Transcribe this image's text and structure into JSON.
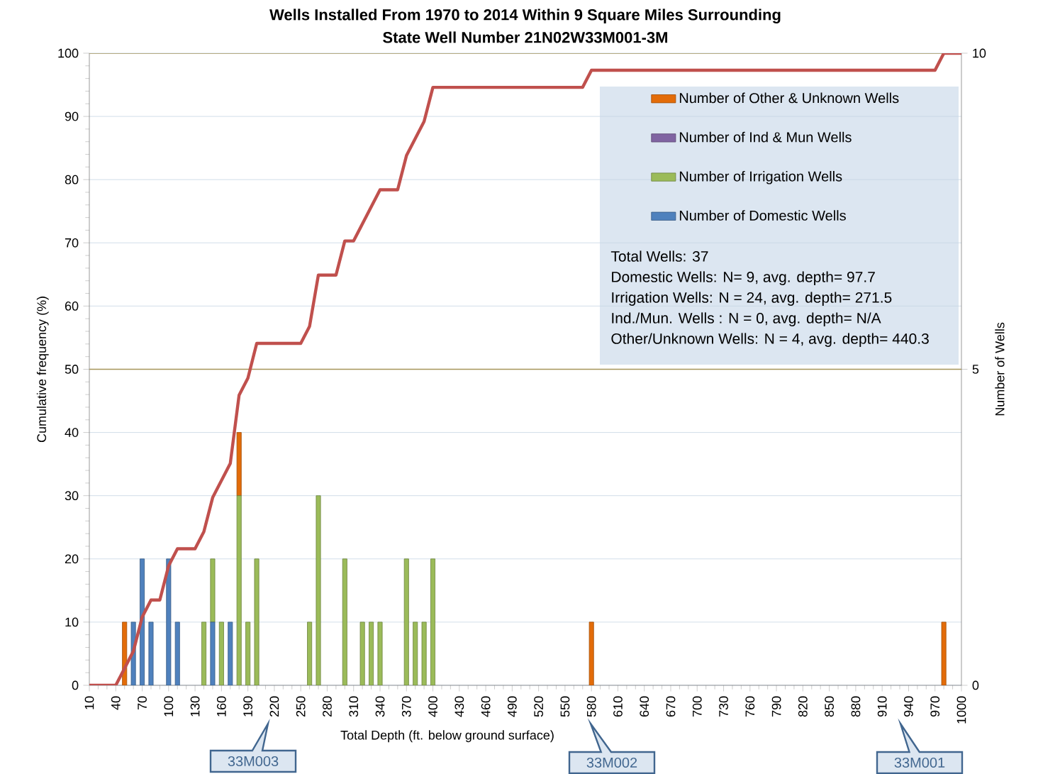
{
  "chart_data": {
    "type": "bar",
    "stacked": true,
    "title": "Wells Installed From 1970 to 2014 Within 9 Square Miles Surrounding",
    "subtitle": "State Well Number 21N02W33M001-3M",
    "xlabel": "Total Depth (ft. below ground surface)",
    "ylabel": "Cumulative frequency (%)",
    "y2label": "Number of Wells",
    "x": [
      50,
      60,
      70,
      80,
      100,
      110,
      140,
      150,
      160,
      170,
      180,
      190,
      200,
      260,
      270,
      300,
      320,
      330,
      340,
      370,
      380,
      390,
      400,
      580,
      980
    ],
    "series": [
      {
        "name": "Number of Domestic Wells",
        "color": "#4f81bd",
        "axis": "y2",
        "values": [
          0,
          1,
          2,
          1,
          2,
          1,
          0,
          1,
          0,
          1,
          0,
          0,
          0,
          0,
          0,
          0,
          0,
          0,
          0,
          0,
          0,
          0,
          0,
          0,
          0
        ]
      },
      {
        "name": "Number of Irrigation Wells",
        "color": "#9bbb59",
        "axis": "y2",
        "values": [
          0,
          0,
          0,
          0,
          0,
          0,
          1,
          1,
          1,
          0,
          3,
          1,
          2,
          1,
          3,
          2,
          1,
          1,
          1,
          2,
          1,
          1,
          2,
          0,
          0
        ]
      },
      {
        "name": "Number of Ind & Mun Wells",
        "color": "#8064a2",
        "axis": "y2",
        "values": [
          0,
          0,
          0,
          0,
          0,
          0,
          0,
          0,
          0,
          0,
          0,
          0,
          0,
          0,
          0,
          0,
          0,
          0,
          0,
          0,
          0,
          0,
          0,
          0,
          0
        ]
      },
      {
        "name": "Number of Other & Unknown Wells",
        "color": "#e36c09",
        "axis": "y2",
        "values": [
          1,
          0,
          0,
          0,
          0,
          0,
          0,
          0,
          0,
          0,
          1,
          0,
          0,
          0,
          0,
          0,
          0,
          0,
          0,
          0,
          0,
          0,
          0,
          1,
          1
        ]
      },
      {
        "type": "line",
        "color": "#c0504d",
        "axis": "y",
        "x": [
          10,
          40,
          50,
          60,
          70,
          80,
          90,
          100,
          110,
          130,
          140,
          150,
          160,
          170,
          180,
          190,
          200,
          250,
          260,
          270,
          290,
          300,
          310,
          320,
          330,
          340,
          360,
          370,
          380,
          390,
          400,
          570,
          580,
          970,
          980,
          1000
        ],
        "values": [
          0,
          0,
          2.7,
          5.4,
          10.8,
          13.5,
          13.5,
          18.9,
          21.6,
          21.6,
          24.3,
          29.7,
          32.4,
          35.1,
          45.9,
          48.6,
          54.1,
          54.1,
          56.8,
          64.9,
          64.9,
          70.3,
          70.3,
          73.0,
          75.7,
          78.4,
          78.4,
          83.8,
          86.5,
          89.2,
          94.6,
          94.6,
          97.3,
          97.3,
          100,
          100
        ]
      }
    ],
    "xlim": [
      10,
      1000
    ],
    "xticks": [
      10,
      40,
      70,
      100,
      130,
      160,
      190,
      220,
      250,
      280,
      310,
      340,
      370,
      400,
      430,
      460,
      490,
      520,
      550,
      580,
      610,
      640,
      670,
      700,
      730,
      760,
      790,
      820,
      850,
      880,
      910,
      940,
      970,
      1000
    ],
    "ylim": [
      0,
      100
    ],
    "yticks": [
      0,
      10,
      20,
      30,
      40,
      50,
      60,
      70,
      80,
      90,
      100
    ],
    "y2lim": [
      0,
      10
    ],
    "y2ticks": [
      0,
      5,
      10
    ],
    "grid": true,
    "legend": "top right",
    "ref_lines": [
      {
        "axis": "y2",
        "value": 5,
        "color": "#a6955a"
      },
      {
        "axis": "y2",
        "value": 10,
        "color": "#a6955a"
      }
    ],
    "annotations": [
      "Total Wells: 37",
      "Domestic  Wells: N= 9,  avg. depth= 97.7",
      "Irrigation Wells:  N =  24, avg. depth= 271.5",
      "Ind./Mun. Wells : N =  0, avg. depth= N/A",
      "Other/Unknown Wells: N =  4, avg. depth= 440.3",
      "33M003",
      "33M002",
      "33M001"
    ]
  }
}
